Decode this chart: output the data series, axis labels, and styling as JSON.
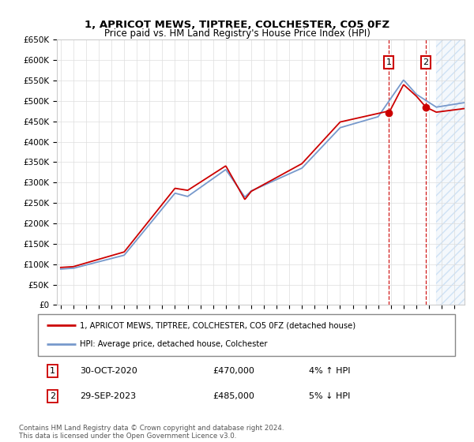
{
  "title": "1, APRICOT MEWS, TIPTREE, COLCHESTER, CO5 0FZ",
  "subtitle": "Price paid vs. HM Land Registry's House Price Index (HPI)",
  "ylim": [
    0,
    650000
  ],
  "yticks": [
    0,
    50000,
    100000,
    150000,
    200000,
    250000,
    300000,
    350000,
    400000,
    450000,
    500000,
    550000,
    600000,
    650000
  ],
  "ytick_labels": [
    "£0",
    "£50K",
    "£100K",
    "£150K",
    "£200K",
    "£250K",
    "£300K",
    "£350K",
    "£400K",
    "£450K",
    "£500K",
    "£550K",
    "£600K",
    "£650K"
  ],
  "xlim_start": 1994.7,
  "xlim_end": 2026.8,
  "hpi_color": "#7799cc",
  "price_color": "#cc0000",
  "sale1_date": 2020.83,
  "sale1_price": 470000,
  "sale2_date": 2023.75,
  "sale2_price": 485000,
  "forecast_start": 2024.58,
  "legend_line1": "1, APRICOT MEWS, TIPTREE, COLCHESTER, CO5 0FZ (detached house)",
  "legend_line2": "HPI: Average price, detached house, Colchester",
  "note1_label": "1",
  "note1_date": "30-OCT-2020",
  "note1_price": "£470,000",
  "note1_hpi": "4% ↑ HPI",
  "note2_label": "2",
  "note2_date": "29-SEP-2023",
  "note2_price": "£485,000",
  "note2_hpi": "5% ↓ HPI",
  "footer": "Contains HM Land Registry data © Crown copyright and database right 2024.\nThis data is licensed under the Open Government Licence v3.0."
}
